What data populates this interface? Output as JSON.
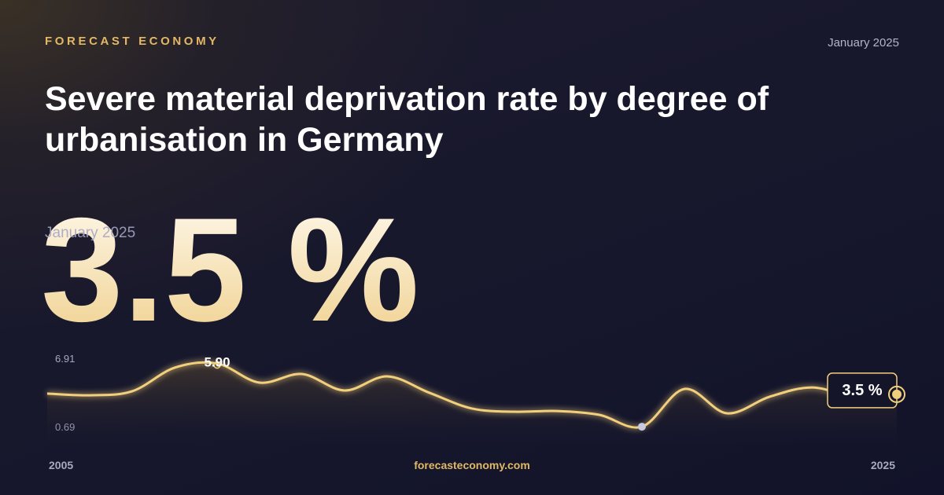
{
  "brand": "FORECAST ECONOMY",
  "date": "January 2025",
  "title": "Severe material deprivation rate by degree of urbanisation in Germany",
  "headline_value": "3.5 %",
  "headline_date": "January 2025",
  "footer": "forecasteconomy.com",
  "chart_data": {
    "type": "line",
    "x": [
      2005,
      2006,
      2007,
      2008,
      2009,
      2010,
      2011,
      2012,
      2013,
      2014,
      2015,
      2016,
      2017,
      2018,
      2019,
      2020,
      2021,
      2022,
      2023,
      2024,
      2025
    ],
    "series": [
      {
        "color": "#f2cf7c",
        "values": [
          3.56,
          3.43,
          3.74,
          5.57,
          5.9,
          4.41,
          5.08,
          3.8,
          4.9,
          3.62,
          2.4,
          2.15,
          2.21,
          1.91,
          0.99,
          3.92,
          2.03,
          3.31,
          4.04,
          3.31,
          3.5
        ],
        "value_labels": [
          null,
          null,
          null,
          null,
          "5.90",
          null,
          null,
          null,
          null,
          null,
          null,
          null,
          null,
          null,
          null,
          null,
          null,
          null,
          null,
          null,
          "3.5 %"
        ]
      }
    ],
    "xlim": [
      2005,
      2025
    ],
    "xticks": [
      2005,
      2025
    ],
    "ylim": [
      0.69,
      6.91
    ],
    "yticks": [
      0.69,
      6.91
    ]
  }
}
